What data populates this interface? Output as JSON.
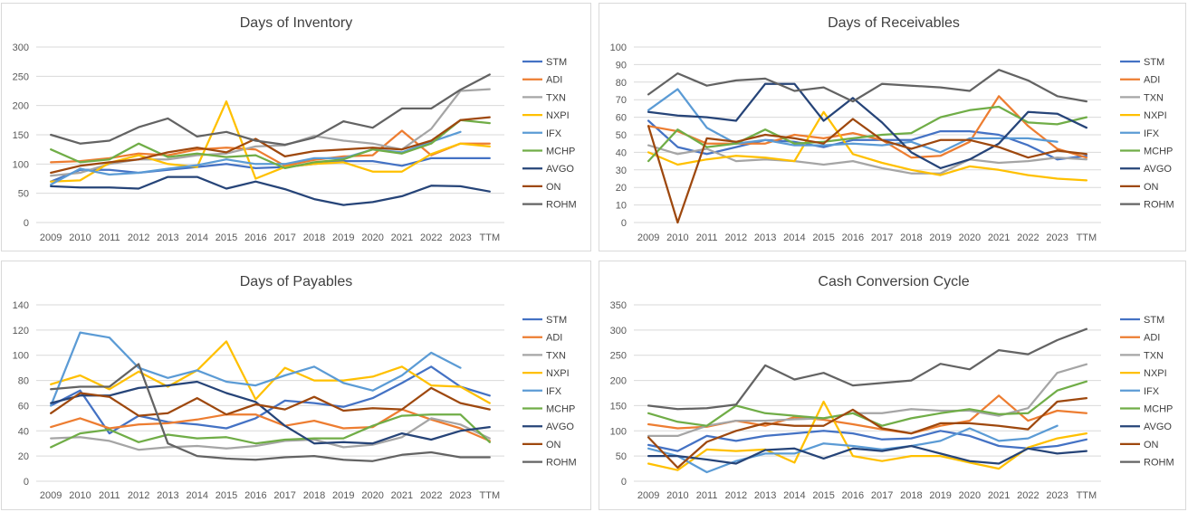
{
  "colors": {
    "STM": "#4472c4",
    "ADI": "#ed7d31",
    "TXN": "#a5a5a5",
    "NXPI": "#ffc000",
    "IFX": "#5b9bd5",
    "MCHP": "#70ad47",
    "AVGO": "#264478",
    "ON": "#9e480e",
    "ROHM": "#636363"
  },
  "chart_data": [
    {
      "type": "line",
      "title": "Days of Inventory",
      "categories": [
        "2009",
        "2010",
        "2011",
        "2012",
        "2013",
        "2014",
        "2015",
        "2016",
        "2017",
        "2018",
        "2019",
        "2020",
        "2021",
        "2022",
        "2023",
        "TTM"
      ],
      "ylim": [
        0,
        300
      ],
      "yticks": [
        0,
        50,
        100,
        150,
        200,
        250,
        300
      ],
      "grid": true,
      "legend_position": "right",
      "series": [
        {
          "name": "STM",
          "values": [
            70,
            90,
            90,
            85,
            90,
            95,
            100,
            93,
            95,
            100,
            105,
            105,
            97,
            110,
            110,
            110
          ]
        },
        {
          "name": "ADI",
          "values": [
            103,
            105,
            110,
            118,
            115,
            125,
            128,
            125,
            97,
            107,
            113,
            115,
            157,
            115,
            135,
            135
          ]
        },
        {
          "name": "TXN",
          "values": [
            80,
            85,
            100,
            108,
            108,
            115,
            118,
            130,
            132,
            148,
            140,
            135,
            125,
            160,
            225,
            228
          ]
        },
        {
          "name": "NXPI",
          "values": [
            70,
            72,
            102,
            115,
            100,
            95,
            207,
            75,
            95,
            100,
            103,
            87,
            87,
            117,
            135,
            130
          ]
        },
        {
          "name": "IFX",
          "values": [
            65,
            92,
            82,
            85,
            92,
            98,
            108,
            100,
            100,
            110,
            110,
            125,
            120,
            138,
            155,
            null
          ]
        },
        {
          "name": "MCHP",
          "values": [
            125,
            103,
            108,
            135,
            112,
            118,
            112,
            115,
            93,
            103,
            108,
            125,
            118,
            135,
            175,
            170
          ]
        },
        {
          "name": "AVGO",
          "values": [
            62,
            60,
            60,
            58,
            78,
            78,
            58,
            70,
            57,
            40,
            30,
            35,
            45,
            63,
            62,
            53
          ]
        },
        {
          "name": "ON",
          "values": [
            85,
            97,
            103,
            108,
            120,
            128,
            120,
            143,
            113,
            122,
            125,
            128,
            125,
            140,
            175,
            180
          ]
        },
        {
          "name": "ROHM",
          "values": [
            150,
            135,
            140,
            163,
            178,
            147,
            155,
            140,
            133,
            145,
            173,
            162,
            195,
            195,
            227,
            253
          ]
        }
      ]
    },
    {
      "type": "line",
      "title": "Days of Receivables",
      "categories": [
        "2009",
        "2010",
        "2011",
        "2012",
        "2013",
        "2014",
        "2015",
        "2016",
        "2017",
        "2018",
        "2019",
        "2020",
        "2021",
        "2022",
        "2023",
        "TTM"
      ],
      "ylim": [
        0,
        100
      ],
      "yticks": [
        0,
        10,
        20,
        30,
        40,
        50,
        60,
        70,
        80,
        90,
        100
      ],
      "grid": true,
      "legend_position": "right",
      "series": [
        {
          "name": "STM",
          "values": [
            58,
            43,
            39,
            43,
            47,
            46,
            43,
            47,
            47,
            47,
            52,
            52,
            50,
            44,
            36,
            38
          ]
        },
        {
          "name": "ADI",
          "values": [
            55,
            52,
            45,
            45,
            45,
            50,
            48,
            51,
            47,
            37,
            38,
            46,
            72,
            55,
            42,
            37
          ]
        },
        {
          "name": "TXN",
          "values": [
            44,
            39,
            42,
            35,
            36,
            35,
            33,
            35,
            31,
            28,
            28,
            36,
            34,
            35,
            37,
            36
          ]
        },
        {
          "name": "NXPI",
          "values": [
            40,
            33,
            36,
            38,
            37,
            35,
            63,
            39,
            34,
            30,
            27,
            32,
            30,
            27,
            25,
            24
          ]
        },
        {
          "name": "IFX",
          "values": [
            64,
            76,
            54,
            45,
            47,
            44,
            44,
            45,
            44,
            46,
            40,
            48,
            48,
            48,
            46,
            null
          ]
        },
        {
          "name": "MCHP",
          "values": [
            35,
            53,
            43,
            45,
            53,
            45,
            46,
            48,
            50,
            51,
            60,
            64,
            66,
            57,
            56,
            60
          ]
        },
        {
          "name": "AVGO",
          "values": [
            63,
            61,
            60,
            58,
            79,
            79,
            58,
            71,
            57,
            40,
            31,
            36,
            45,
            63,
            62,
            54
          ]
        },
        {
          "name": "ON",
          "values": [
            55,
            0,
            48,
            46,
            50,
            48,
            45,
            59,
            47,
            42,
            47,
            47,
            43,
            37,
            41,
            39
          ]
        },
        {
          "name": "ROHM",
          "values": [
            73,
            85,
            78,
            81,
            82,
            75,
            77,
            69,
            79,
            78,
            77,
            75,
            87,
            81,
            72,
            69
          ]
        }
      ]
    },
    {
      "type": "line",
      "title": "Days of Payables",
      "categories": [
        "2009",
        "2010",
        "2011",
        "2012",
        "2013",
        "2014",
        "2015",
        "2016",
        "2017",
        "2018",
        "2019",
        "2020",
        "2021",
        "2022",
        "2023",
        "TTM"
      ],
      "ylim": [
        0,
        140
      ],
      "yticks": [
        0,
        20,
        40,
        60,
        80,
        100,
        120,
        140
      ],
      "grid": true,
      "legend_position": "right",
      "series": [
        {
          "name": "STM",
          "values": [
            60,
            72,
            38,
            52,
            47,
            45,
            42,
            50,
            64,
            62,
            59,
            66,
            78,
            91,
            75,
            68
          ]
        },
        {
          "name": "ADI",
          "values": [
            43,
            50,
            42,
            45,
            46,
            49,
            53,
            53,
            44,
            48,
            42,
            43,
            57,
            49,
            42,
            32
          ]
        },
        {
          "name": "TXN",
          "values": [
            34,
            35,
            32,
            25,
            27,
            28,
            26,
            28,
            32,
            33,
            27,
            29,
            35,
            50,
            45,
            34
          ]
        },
        {
          "name": "NXPI",
          "values": [
            77,
            84,
            73,
            87,
            75,
            88,
            111,
            65,
            90,
            80,
            80,
            83,
            91,
            76,
            75,
            62
          ]
        },
        {
          "name": "IFX",
          "values": [
            60,
            118,
            114,
            90,
            82,
            88,
            79,
            76,
            84,
            91,
            78,
            72,
            84,
            102,
            90,
            null
          ]
        },
        {
          "name": "MCHP",
          "values": [
            27,
            38,
            41,
            31,
            37,
            34,
            35,
            30,
            33,
            34,
            34,
            44,
            52,
            53,
            53,
            31
          ]
        },
        {
          "name": "AVGO",
          "values": [
            62,
            68,
            68,
            74,
            76,
            79,
            70,
            63,
            44,
            30,
            31,
            30,
            38,
            33,
            40,
            43
          ]
        },
        {
          "name": "ON",
          "values": [
            54,
            70,
            67,
            52,
            54,
            66,
            53,
            61,
            57,
            67,
            56,
            58,
            57,
            74,
            62,
            57
          ]
        },
        {
          "name": "ROHM",
          "values": [
            73,
            75,
            75,
            93,
            30,
            20,
            18,
            17,
            19,
            20,
            17,
            16,
            21,
            23,
            19,
            19
          ]
        }
      ]
    },
    {
      "type": "line",
      "title": "Cash Conversion Cycle",
      "categories": [
        "2009",
        "2010",
        "2011",
        "2012",
        "2013",
        "2014",
        "2015",
        "2016",
        "2017",
        "2018",
        "2019",
        "2020",
        "2021",
        "2022",
        "2023",
        "TTM"
      ],
      "ylim": [
        0,
        350
      ],
      "yticks": [
        0,
        50,
        100,
        150,
        200,
        250,
        300,
        350
      ],
      "grid": true,
      "legend_position": "right",
      "series": [
        {
          "name": "STM",
          "values": [
            72,
            60,
            90,
            80,
            90,
            95,
            100,
            95,
            83,
            85,
            100,
            90,
            70,
            65,
            70,
            83
          ]
        },
        {
          "name": "ADI",
          "values": [
            113,
            105,
            108,
            120,
            110,
            127,
            122,
            113,
            103,
            95,
            110,
            120,
            170,
            120,
            140,
            135
          ]
        },
        {
          "name": "TXN",
          "values": [
            90,
            90,
            110,
            120,
            120,
            123,
            125,
            135,
            135,
            143,
            140,
            140,
            130,
            145,
            215,
            232
          ]
        },
        {
          "name": "NXPI",
          "values": [
            35,
            22,
            63,
            60,
            63,
            37,
            158,
            50,
            40,
            50,
            50,
            37,
            25,
            67,
            85,
            95
          ]
        },
        {
          "name": "IFX",
          "values": [
            65,
            50,
            18,
            40,
            55,
            55,
            75,
            70,
            63,
            70,
            80,
            105,
            80,
            85,
            110,
            null
          ]
        },
        {
          "name": "MCHP",
          "values": [
            135,
            118,
            110,
            150,
            135,
            130,
            125,
            135,
            110,
            125,
            135,
            143,
            133,
            135,
            180,
            198
          ]
        },
        {
          "name": "AVGO",
          "values": [
            50,
            50,
            43,
            35,
            62,
            65,
            45,
            65,
            60,
            70,
            55,
            40,
            35,
            65,
            55,
            60
          ]
        },
        {
          "name": "ON",
          "values": [
            87,
            27,
            78,
            100,
            115,
            110,
            110,
            142,
            105,
            95,
            115,
            115,
            110,
            103,
            158,
            165
          ]
        },
        {
          "name": "ROHM",
          "values": [
            150,
            143,
            145,
            152,
            230,
            202,
            215,
            190,
            195,
            200,
            233,
            222,
            260,
            252,
            280,
            302
          ]
        }
      ]
    }
  ]
}
